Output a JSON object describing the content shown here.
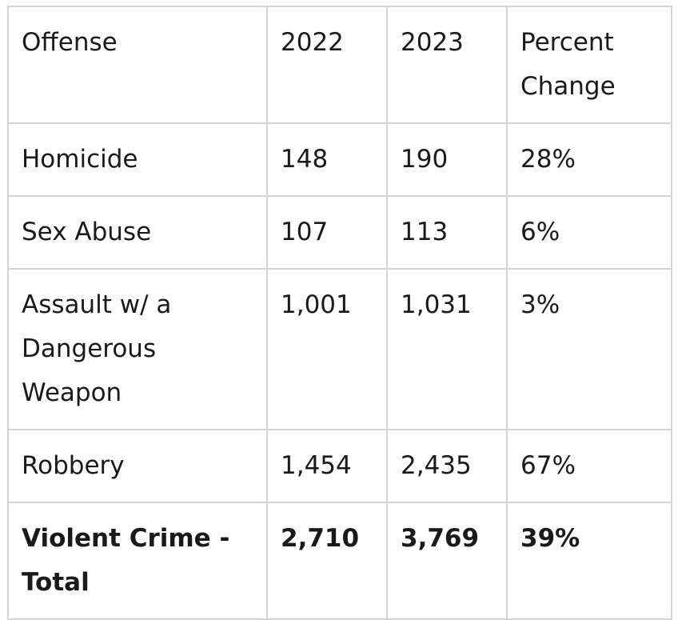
{
  "table": {
    "headers": [
      "Offense",
      "2022",
      "2023",
      "Percent Change"
    ],
    "rows": [
      [
        "Homicide",
        "148",
        "190",
        "28%"
      ],
      [
        "Sex Abuse",
        "107",
        "113",
        "6%"
      ],
      [
        "Assault w/ a Dangerous Weapon",
        "1,001",
        "1,031",
        "3%"
      ],
      [
        "Robbery",
        "1,454",
        "2,435",
        "67%"
      ],
      [
        "Violent Crime - Total",
        "2,710",
        "3,769",
        "39%"
      ]
    ]
  }
}
